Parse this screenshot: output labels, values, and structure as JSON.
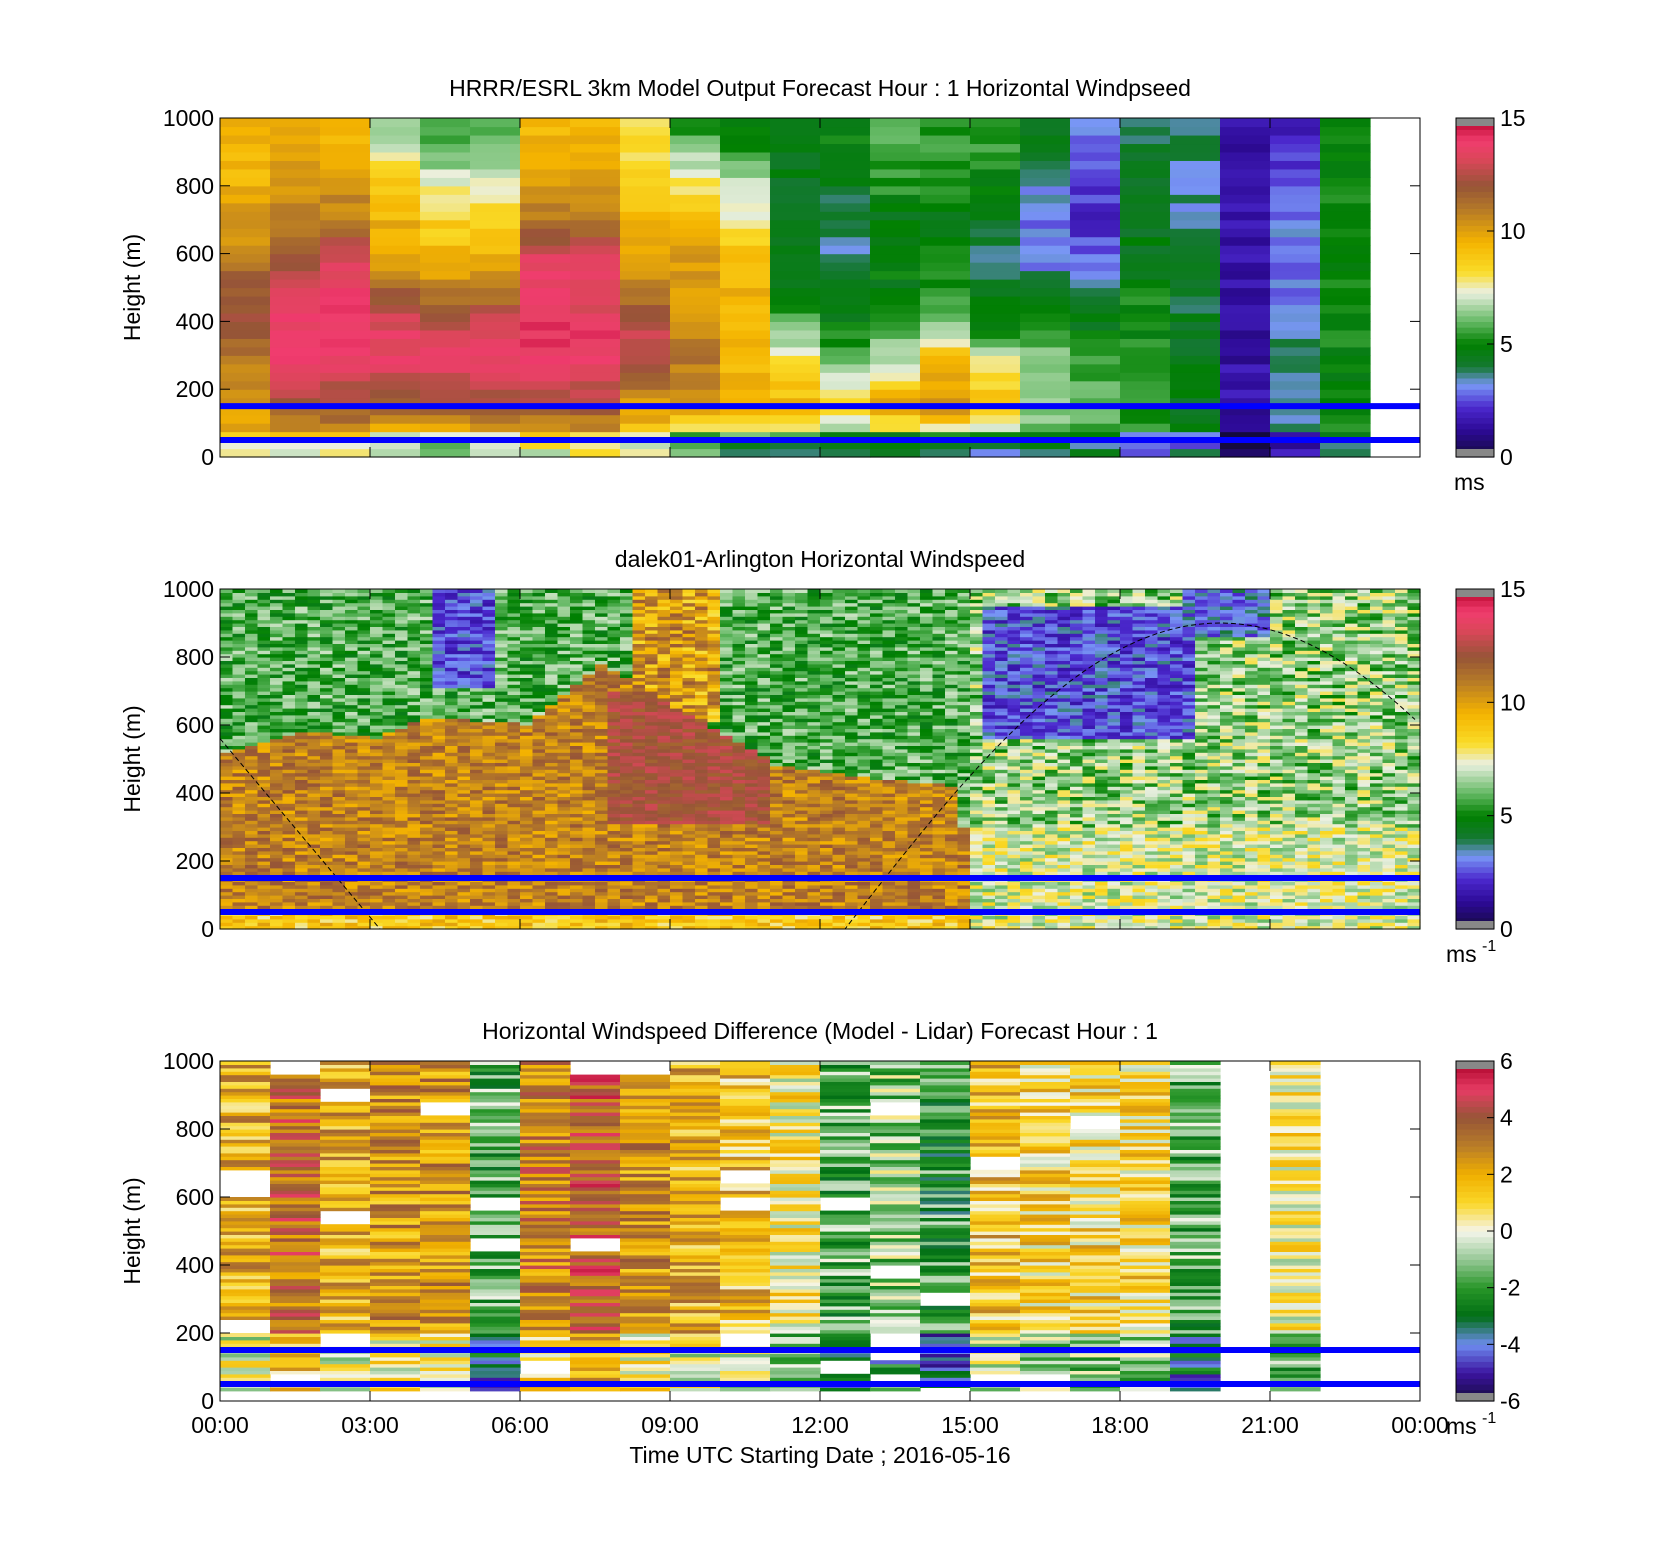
{
  "figure": {
    "xlabel": "Time UTC  Starting Date ; 2016-05-16",
    "x_ticks": [
      "00:00",
      "03:00",
      "06:00",
      "09:00",
      "12:00",
      "15:00",
      "18:00",
      "21:00",
      "00:00"
    ],
    "y_ticks": [
      "0",
      "200",
      "400",
      "600",
      "800",
      "1000"
    ]
  },
  "chart_data": [
    {
      "type": "heatmap",
      "title": "HRRR/ESRL 3km Model Output   Forecast Hour : 1 Horizontal Windpseed",
      "ylabel": "Height (m)",
      "xlim_hours": [
        0,
        24
      ],
      "ylim": [
        0,
        1000
      ],
      "colorbar": {
        "ticks": [
          "0",
          "5",
          "10",
          "15"
        ],
        "range": [
          0,
          15
        ],
        "unit_label": "ms",
        "unit_sup": ""
      },
      "blue_lines_m": [
        150,
        50
      ],
      "column_hours": [
        0,
        1,
        2,
        3,
        4,
        5,
        6,
        7,
        8,
        9,
        10,
        11,
        12,
        13,
        14,
        15,
        16,
        17,
        18,
        19,
        20,
        21,
        22
      ],
      "approx_speed_profiles_ms": [
        [
          9.5,
          10,
          11,
          12,
          12,
          11,
          10,
          9.5,
          9.5
        ],
        [
          9.5,
          12,
          13.5,
          14,
          13.5,
          12,
          11,
          10,
          9.5
        ],
        [
          9.5,
          12,
          13.5,
          14,
          14,
          13.5,
          11,
          10,
          9.5
        ],
        [
          8,
          12,
          13.5,
          13.5,
          12,
          10,
          9.5,
          8.5,
          6.5
        ],
        [
          8,
          12,
          13.5,
          13,
          11,
          9.5,
          8.5,
          7,
          5.5
        ],
        [
          8,
          12,
          13.5,
          13.5,
          11,
          9.5,
          8.5,
          7,
          6
        ],
        [
          9,
          12,
          14,
          14,
          13.5,
          13.5,
          11,
          10,
          9.5
        ],
        [
          9,
          12,
          14,
          14,
          13,
          13.5,
          11,
          10,
          9.5
        ],
        [
          8.5,
          10,
          13,
          13,
          11,
          10,
          9.5,
          8.5,
          8
        ],
        [
          7,
          10,
          11,
          10.5,
          10,
          10,
          9.5,
          7.5,
          5.5
        ],
        [
          6,
          9.5,
          9.5,
          9.5,
          9.5,
          9.5,
          7.5,
          6.5,
          5
        ],
        [
          6,
          9.5,
          8,
          6,
          5,
          4.5,
          4.5,
          4.5,
          4.5
        ],
        [
          5.5,
          8.5,
          6,
          5,
          4.5,
          3.5,
          4,
          4.5,
          5
        ],
        [
          5.5,
          10,
          7,
          6,
          4.5,
          5,
          4.5,
          5.5,
          6
        ],
        [
          5.5,
          10.5,
          9.5,
          6.5,
          5.5,
          5,
          4.5,
          5.5,
          5.5
        ],
        [
          5.5,
          9.5,
          7.5,
          5,
          4.5,
          3.5,
          4.5,
          5,
          5.5
        ],
        [
          6,
          6.5,
          6.5,
          5.5,
          4.5,
          3,
          3,
          3.5,
          4.5
        ],
        [
          5.5,
          6,
          5.5,
          4.5,
          4.5,
          3,
          2,
          2.5,
          3
        ],
        [
          5,
          5.5,
          5.5,
          5,
          5,
          4.5,
          4.5,
          4.5,
          4
        ],
        [
          4.5,
          4.5,
          4.5,
          4.5,
          4,
          4,
          3.5,
          3.5,
          4
        ],
        [
          1.5,
          1.5,
          1.5,
          1.5,
          1.5,
          1.5,
          1.5,
          1.5,
          1.5
        ],
        [
          3,
          4,
          3.5,
          3.5,
          3,
          3,
          3,
          2.5,
          2
        ],
        [
          5,
          5,
          5,
          5,
          5,
          5,
          5,
          5,
          5
        ]
      ],
      "profile_heights_m": [
        25,
        150,
        275,
        375,
        475,
        575,
        700,
        825,
        950
      ]
    },
    {
      "type": "heatmap",
      "title": "dalek01-Arlington  Horizontal Windspeed",
      "ylabel": "Height (m)",
      "xlim_hours": [
        0,
        24
      ],
      "ylim": [
        0,
        1000
      ],
      "colorbar": {
        "ticks": [
          "0",
          "5",
          "10",
          "15"
        ],
        "range": [
          0,
          15
        ],
        "unit_label": "ms",
        "unit_sup": "-1"
      },
      "blue_lines_m": [
        150,
        50
      ],
      "approx_jet_top_m_vs_hour": [
        [
          0,
          520
        ],
        [
          1.5,
          580
        ],
        [
          3,
          560
        ],
        [
          4,
          620
        ],
        [
          6,
          600
        ],
        [
          7.5,
          780
        ],
        [
          9,
          650
        ],
        [
          11,
          480
        ],
        [
          13,
          440
        ],
        [
          14.5,
          420
        ],
        [
          15,
          180
        ],
        [
          24,
          150
        ]
      ],
      "approx_low_speed_core": {
        "hours": [
          15,
          19.5
        ],
        "heights_m": [
          550,
          950
        ],
        "speed_ms": 1.5
      },
      "dashed_curve": "sinusoid rising from 0 m near 12:30 to about 900 m near 20:00"
    },
    {
      "type": "heatmap",
      "title": "Horizontal Windspeed Difference (Model - Lidar) Forecast Hour : 1",
      "ylabel": "Height (m)",
      "xlim_hours": [
        0,
        24
      ],
      "ylim": [
        0,
        1000
      ],
      "colorbar": {
        "ticks": [
          "-6",
          "-4",
          "-2",
          "0",
          "2",
          "4",
          "6"
        ],
        "range": [
          -6,
          6
        ],
        "unit_label": "ms",
        "unit_sup": "-1"
      },
      "blue_lines_m": [
        150,
        50
      ],
      "column_hours": [
        0,
        1,
        2,
        3,
        4,
        5,
        6,
        7,
        8,
        9,
        10,
        11,
        12,
        13,
        14,
        15,
        16,
        17,
        18,
        19,
        20,
        21,
        22
      ],
      "approx_mean_difference_ms": [
        2,
        3.5,
        2,
        2.5,
        2.5,
        -1.5,
        3,
        4,
        2.5,
        2,
        1.5,
        0.5,
        -1.5,
        -1,
        -2,
        1.5,
        1,
        1,
        1,
        -1.5,
        null,
        0.5,
        null
      ]
    }
  ]
}
